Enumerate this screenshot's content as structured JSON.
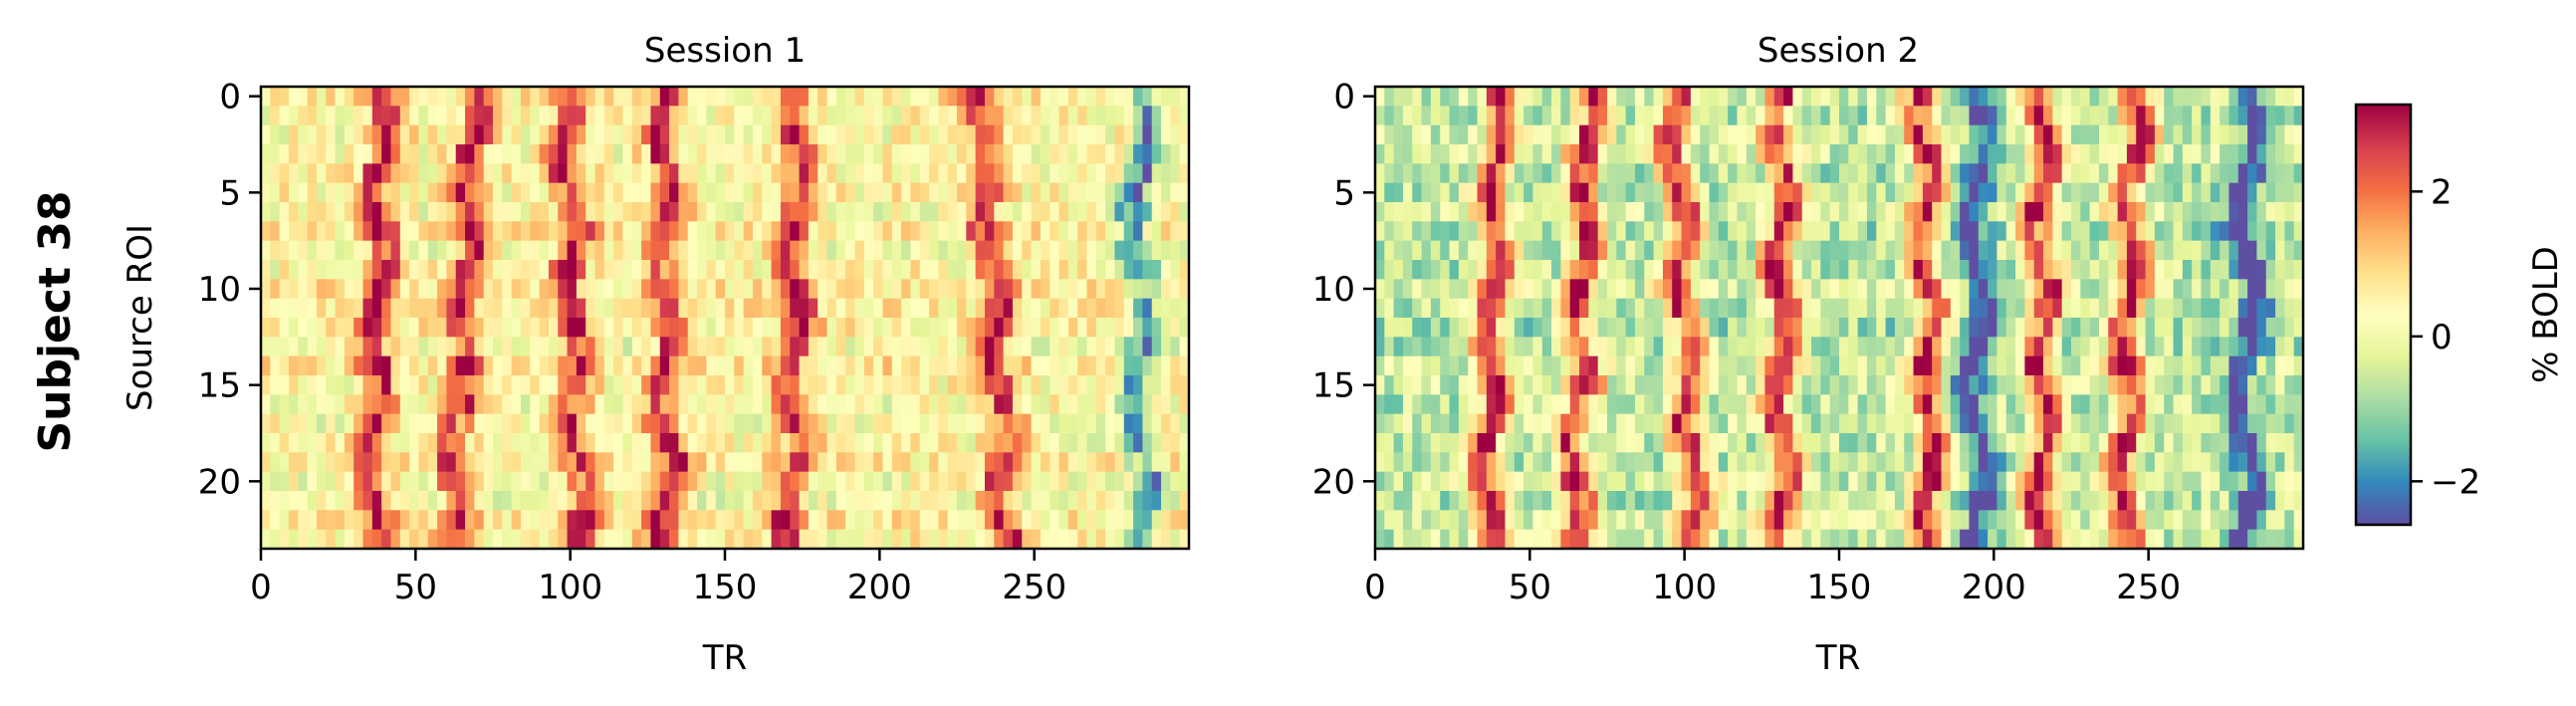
{
  "figure": {
    "suptitle": "Subject 38"
  },
  "chart_data": [
    {
      "type": "heatmap",
      "title": "Session 1",
      "xlabel": "TR",
      "ylabel": "Source ROI",
      "n_rows": 24,
      "n_cols": 300,
      "xlim": [
        0,
        300
      ],
      "ylim": [
        23.5,
        -0.5
      ],
      "xticks": [
        0,
        50,
        100,
        150,
        200,
        250
      ],
      "yticks": [
        0,
        5,
        10,
        15,
        20
      ],
      "colormap": "Spectral_r",
      "peak_tr_row0": [
        38,
        68,
        97,
        129,
        172,
        232
      ],
      "peak_tr_row23": [
        35,
        60,
        102,
        130,
        170,
        240
      ],
      "dip_tr": 283,
      "peak_value": 2.8,
      "baseline_value": 0.4
    },
    {
      "type": "heatmap",
      "title": "Session 2",
      "xlabel": "TR",
      "ylabel": "",
      "n_rows": 24,
      "n_cols": 300,
      "xlim": [
        0,
        300
      ],
      "ylim": [
        23.5,
        -0.5
      ],
      "xticks": [
        0,
        50,
        100,
        150,
        200,
        250
      ],
      "yticks": [
        0,
        5,
        10,
        15,
        20
      ],
      "colormap": "Spectral_r",
      "peak_tr_row0": [
        38,
        68,
        95,
        130,
        176,
        214,
        244
      ],
      "peak_tr_row23": [
        35,
        62,
        102,
        130,
        178,
        214,
        240
      ],
      "dip_tr": [
        193,
        280
      ],
      "peak_value": 2.8,
      "baseline_value": -0.6
    }
  ],
  "colorbar": {
    "label": "% BOLD",
    "vmin": -2.6,
    "vmax": 3.2,
    "ticks": [
      -2,
      0,
      2
    ],
    "tick_labels": [
      "−2",
      "0",
      "2"
    ]
  }
}
